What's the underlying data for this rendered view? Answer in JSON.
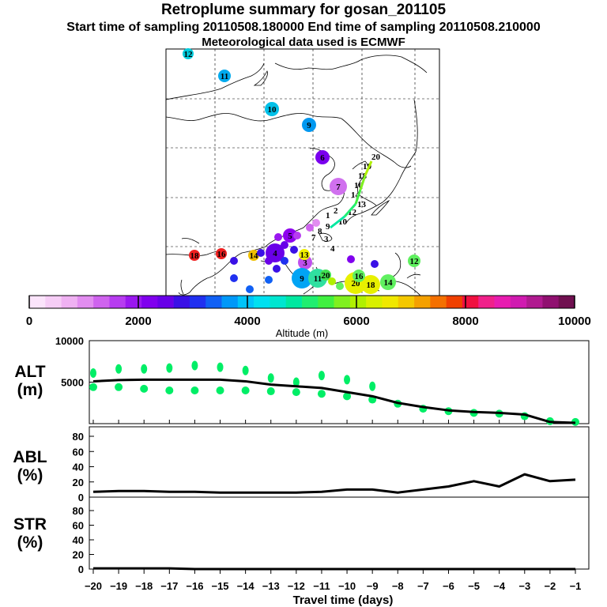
{
  "header": {
    "title": "Retroplume summary for gosan_201105",
    "sampling": "Start time of sampling 20110508.180000     End time of sampling 20110508.210000",
    "met": "Meteorological data used is ECMWF"
  },
  "colorbar": {
    "xlabel": "Altitude (m)",
    "tick_labels": [
      "0",
      "2000",
      "4000",
      "6000",
      "8000",
      "10000"
    ],
    "colors": [
      "#fbe4fb",
      "#f6cdf6",
      "#efb1f2",
      "#e28df0",
      "#cf63ee",
      "#b73cf0",
      "#9a17f0",
      "#8000ee",
      "#6800e8",
      "#3a10e6",
      "#2030f0",
      "#1060f4",
      "#0098f8",
      "#00c4fa",
      "#00e0f0",
      "#00e6d0",
      "#00e8a0",
      "#20ee70",
      "#40f040",
      "#80f020",
      "#b0f000",
      "#d8f000",
      "#f0e800",
      "#f4c800",
      "#f4a000",
      "#f47000",
      "#f04000",
      "#f01040",
      "#f0208a",
      "#e81cb0",
      "#d01ab0",
      "#b01a90",
      "#901070",
      "#701050"
    ]
  },
  "map": {
    "points": [
      {
        "label": "12",
        "color": "#00ccdd"
      },
      {
        "label": "11",
        "color": "#00aaee"
      },
      {
        "label": "10",
        "color": "#00c0e8"
      },
      {
        "label": "9",
        "color": "#0098f0"
      },
      {
        "label": "6",
        "color": "#7a00ee"
      },
      {
        "label": "7",
        "color": "#d070ee"
      },
      {
        "label": "5",
        "color": "#8e00ee"
      },
      {
        "label": "4",
        "color": "#6a00e8"
      },
      {
        "label": "3",
        "color": "#c050ee"
      },
      {
        "label": "18",
        "color": "#f02020"
      },
      {
        "label": "16",
        "color": "#f02020"
      },
      {
        "label": "14",
        "color": "#f0c000"
      },
      {
        "label": "13",
        "color": "#f0f000"
      },
      {
        "label": "9",
        "color": "#00a4f4"
      },
      {
        "label": "11",
        "color": "#30e0a0"
      },
      {
        "label": "20",
        "color": "#e8f000"
      },
      {
        "label": "18",
        "color": "#e8f000"
      },
      {
        "label": "16",
        "color": "#60f060"
      },
      {
        "label": "14",
        "color": "#60f060"
      },
      {
        "label": "12",
        "color": "#60f060"
      },
      {
        "label": "20",
        "color": "#40e050"
      }
    ]
  },
  "panels": {
    "alt_label": [
      "ALT",
      "(m)"
    ],
    "abl_label": [
      "ABL",
      "(%)"
    ],
    "str_label": [
      "STR",
      "(%)"
    ],
    "alt_ticks": [
      "10000",
      "5000"
    ],
    "pct_ticks": [
      "80",
      "60",
      "40",
      "20",
      "0"
    ],
    "xlabel": "Travel time (days)",
    "x_ticks": [
      "-20",
      "-19",
      "-18",
      "-17",
      "-16",
      "-15",
      "-14",
      "-13",
      "-12",
      "-11",
      "-10",
      "-9",
      "-8",
      "-7",
      "-6",
      "-5",
      "-4",
      "-3",
      "-2",
      "-1"
    ]
  },
  "chart_data": [
    {
      "type": "line",
      "title": "ALT (m)",
      "xlabel": "Travel time (days)",
      "ylabel": "ALT (m)",
      "xlim": [
        -20,
        -0.5
      ],
      "ylim": [
        0,
        10000
      ],
      "x": [
        -20,
        -19,
        -18,
        -17,
        -16,
        -15,
        -14,
        -13,
        -12,
        -11,
        -10,
        -9,
        -8,
        -7,
        -6,
        -5,
        -4,
        -3,
        -2,
        -1
      ],
      "series": [
        {
          "name": "mean altitude",
          "values": [
            5100,
            5250,
            5300,
            5300,
            5300,
            5300,
            5100,
            4700,
            4500,
            4300,
            3800,
            3300,
            2500,
            2000,
            1600,
            1400,
            1300,
            1100,
            200,
            100
          ]
        },
        {
          "name": "upper dots",
          "values": [
            6100,
            6600,
            6600,
            6700,
            7000,
            6800,
            6400,
            5500,
            5000,
            5800,
            5300,
            4500,
            null,
            null,
            null,
            null,
            null,
            null,
            null,
            null
          ]
        },
        {
          "name": "lower dots",
          "values": [
            4400,
            4400,
            4200,
            4000,
            4000,
            4000,
            4000,
            3900,
            3800,
            3600,
            3300,
            2900,
            2400,
            1800,
            1500,
            1300,
            1200,
            900,
            300,
            200
          ]
        }
      ]
    },
    {
      "type": "line",
      "title": "ABL (%)",
      "xlabel": "Travel time (days)",
      "ylabel": "ABL (%)",
      "xlim": [
        -20,
        -0.5
      ],
      "ylim": [
        0,
        100
      ],
      "x": [
        -20,
        -19,
        -18,
        -17,
        -16,
        -15,
        -14,
        -13,
        -12,
        -11,
        -10,
        -9,
        -8,
        -7,
        -6,
        -5,
        -4,
        -3,
        -2,
        -1
      ],
      "series": [
        {
          "name": "ABL",
          "values": [
            7,
            8,
            8,
            7,
            7,
            6,
            6,
            6,
            6,
            7,
            10,
            10,
            6,
            10,
            14,
            21,
            14,
            30,
            21,
            23
          ]
        }
      ]
    },
    {
      "type": "line",
      "title": "STR (%)",
      "xlabel": "Travel time (days)",
      "ylabel": "STR (%)",
      "xlim": [
        -20,
        -0.5
      ],
      "ylim": [
        0,
        100
      ],
      "x": [
        -20,
        -19,
        -18,
        -17,
        -16,
        -15,
        -14,
        -13,
        -12,
        -11,
        -10,
        -9,
        -8,
        -7,
        -6,
        -5,
        -4,
        -3,
        -2,
        -1
      ],
      "series": [
        {
          "name": "STR",
          "values": [
            1,
            1,
            1,
            1,
            0,
            0,
            0,
            0,
            0,
            0,
            0,
            0,
            0,
            0,
            0,
            0,
            0,
            0,
            0,
            0
          ]
        }
      ]
    }
  ]
}
